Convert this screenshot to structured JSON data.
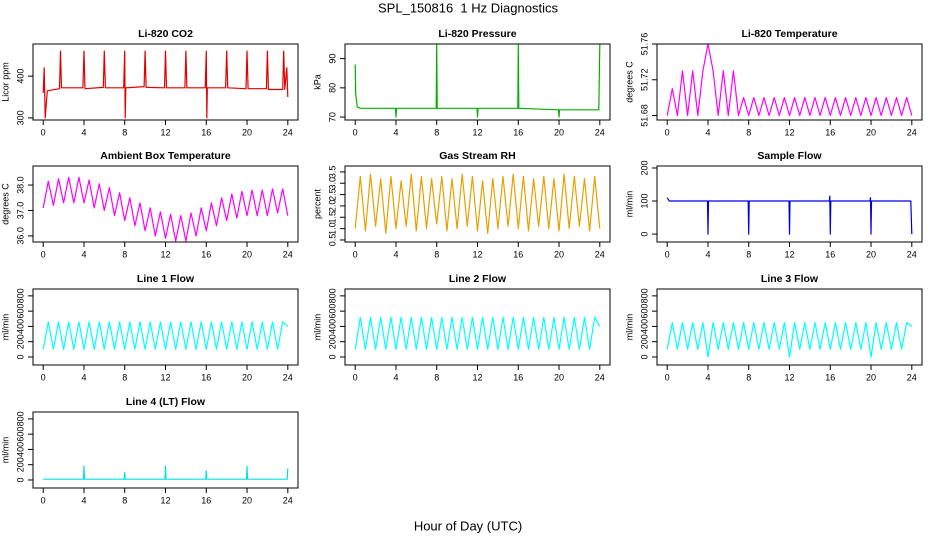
{
  "title": "SPL_150816  1 Hz Diagnostics",
  "xlabel": "Hour of Day (UTC)",
  "chart_data": [
    {
      "type": "line",
      "title": "Li-820 CO2",
      "ylabel": "Licor ppm",
      "xlim": [
        -1,
        25
      ],
      "xticks": [
        0,
        4,
        8,
        12,
        16,
        20,
        24
      ],
      "ylim": [
        295,
        477
      ],
      "yticks": [
        300,
        400
      ],
      "x": [
        0,
        0.1,
        0.2,
        0.4,
        1.6,
        1.7,
        1.8,
        3.9,
        4,
        4.1,
        5.9,
        6,
        6.1,
        7.9,
        8,
        8.05,
        8.1,
        9.9,
        10,
        10.1,
        11.9,
        12,
        12.1,
        13.9,
        14,
        14.1,
        15.9,
        16,
        16.05,
        16.1,
        17.9,
        18,
        18.1,
        19.9,
        20,
        20.1,
        21.9,
        22,
        22.1,
        23.5,
        23.6,
        23.7,
        23.9,
        24
      ],
      "series": [
        {
          "color": "#e00000",
          "values": [
            360,
            420,
            300,
            365,
            370,
            460,
            372,
            372,
            460,
            370,
            373,
            460,
            372,
            372,
            460,
            300,
            372,
            375,
            460,
            373,
            372,
            460,
            372,
            372,
            460,
            372,
            372,
            460,
            300,
            372,
            372,
            460,
            372,
            370,
            460,
            370,
            370,
            460,
            368,
            368,
            460,
            368,
            420,
            350
          ]
        }
      ]
    },
    {
      "type": "line",
      "title": "Li-820 Pressure",
      "ylabel": "kPa",
      "xlim": [
        -1,
        25
      ],
      "xticks": [
        0,
        4,
        8,
        12,
        16,
        20,
        24
      ],
      "ylim": [
        69,
        95
      ],
      "yticks": [
        70,
        80,
        90
      ],
      "x": [
        0,
        0.05,
        0.2,
        0.5,
        3.95,
        4,
        4.05,
        7.95,
        8,
        8.05,
        11.95,
        12,
        12.05,
        15.95,
        16,
        16.05,
        19.95,
        20,
        20.05,
        23.9,
        24
      ],
      "series": [
        {
          "color": "#00b000",
          "values": [
            88,
            78,
            73.5,
            73,
            73,
            70,
            73,
            73,
            95,
            73,
            73,
            70,
            73,
            73,
            95,
            73,
            72.5,
            70,
            72.5,
            72.5,
            95
          ]
        }
      ]
    },
    {
      "type": "line",
      "title": "Li-820 Temperature",
      "ylabel": "degrees C",
      "xlim": [
        -1,
        25
      ],
      "xticks": [
        0,
        4,
        8,
        12,
        16,
        20,
        24
      ],
      "ylim": [
        51.675,
        51.76
      ],
      "yticks": [
        51.68,
        51.72,
        51.76
      ],
      "x": [
        0,
        0.5,
        1,
        1.5,
        2,
        2.5,
        3,
        3.5,
        4,
        4.5,
        5,
        5.5,
        6,
        6.5,
        7,
        7.5,
        8,
        8.5,
        9,
        9.5,
        10,
        10.5,
        11,
        11.5,
        12,
        12.5,
        13,
        13.5,
        14,
        14.5,
        15,
        15.5,
        16,
        16.5,
        17,
        17.5,
        18,
        18.5,
        19,
        19.5,
        20,
        20.5,
        21,
        21.5,
        22,
        22.5,
        23,
        23.5,
        24
      ],
      "series": [
        {
          "color": "#ff00ff",
          "values": [
            51.68,
            51.71,
            51.68,
            51.73,
            51.68,
            51.73,
            51.68,
            51.73,
            51.76,
            51.73,
            51.68,
            51.73,
            51.68,
            51.73,
            51.68,
            51.7,
            51.68,
            51.7,
            51.68,
            51.7,
            51.68,
            51.7,
            51.68,
            51.7,
            51.68,
            51.7,
            51.68,
            51.7,
            51.68,
            51.7,
            51.68,
            51.7,
            51.68,
            51.7,
            51.68,
            51.7,
            51.68,
            51.7,
            51.68,
            51.7,
            51.68,
            51.7,
            51.68,
            51.7,
            51.68,
            51.7,
            51.68,
            51.7,
            51.68
          ]
        }
      ]
    },
    {
      "type": "line",
      "title": "Ambient Box Temperature",
      "ylabel": "degrees C",
      "xlim": [
        -1,
        25
      ],
      "xticks": [
        0,
        4,
        8,
        12,
        16,
        20,
        24
      ],
      "ylim": [
        35.76,
        38.75
      ],
      "yticks": [
        {
          "value": 36,
          "label": "36.0"
        },
        {
          "value": 37,
          "label": "37.0"
        },
        {
          "value": 38,
          "label": "38.0"
        }
      ],
      "x": [
        0,
        0.5,
        1,
        1.5,
        2,
        2.5,
        3,
        3.5,
        4,
        4.5,
        5,
        5.5,
        6,
        6.5,
        7,
        7.5,
        8,
        8.5,
        9,
        9.5,
        10,
        10.5,
        11,
        11.5,
        12,
        12.5,
        13,
        13.5,
        14,
        14.5,
        15,
        15.5,
        16,
        16.5,
        17,
        17.5,
        18,
        18.5,
        19,
        19.5,
        20,
        20.5,
        21,
        21.5,
        22,
        22.5,
        23,
        23.5,
        24
      ],
      "series": [
        {
          "color": "#ff00ff",
          "values": [
            37.1,
            38.15,
            37.2,
            38.25,
            37.3,
            38.3,
            37.3,
            38.3,
            37.3,
            38.2,
            37.1,
            38.05,
            37.0,
            37.9,
            36.8,
            37.7,
            36.6,
            37.5,
            36.4,
            37.3,
            36.2,
            37.1,
            36.0,
            36.95,
            35.9,
            36.85,
            35.8,
            36.8,
            35.8,
            36.9,
            36.0,
            37.1,
            36.2,
            37.3,
            36.4,
            37.5,
            36.6,
            37.65,
            36.7,
            37.75,
            36.8,
            37.8,
            36.8,
            37.8,
            36.8,
            37.85,
            36.9,
            37.85,
            36.8
          ]
        }
      ]
    },
    {
      "type": "line",
      "title": "Gas Stream RH",
      "ylabel": "percent",
      "xlim": [
        -1,
        25
      ],
      "xticks": [
        0,
        4,
        8,
        12,
        16,
        20,
        24
      ],
      "ylim": [
        0.41,
        3.76
      ],
      "yticks": [
        0.5,
        {
          "value": 1,
          "label": "1.0"
        },
        1.5,
        {
          "value": 2,
          "label": "2.0"
        },
        2.5,
        {
          "value": 3,
          "label": "3.0"
        },
        3.5
      ],
      "x": [
        0,
        0.5,
        1,
        1.5,
        2,
        2.5,
        3,
        3.5,
        4,
        4.5,
        5,
        5.5,
        6,
        6.5,
        7,
        7.5,
        8,
        8.5,
        9,
        9.5,
        10,
        10.5,
        11,
        11.5,
        12,
        12.5,
        13,
        13.5,
        14,
        14.5,
        15,
        15.5,
        16,
        16.5,
        17,
        17.5,
        18,
        18.5,
        19,
        19.5,
        20,
        20.5,
        21,
        21.5,
        22,
        22.5,
        23,
        23.5,
        24
      ],
      "series": [
        {
          "color": "#e8a000",
          "values": [
            1.0,
            3.3,
            0.9,
            3.4,
            1.1,
            3.2,
            0.8,
            3.3,
            1.0,
            3.1,
            1.1,
            3.4,
            0.9,
            3.3,
            1.0,
            3.2,
            1.2,
            3.3,
            0.9,
            3.2,
            1.0,
            3.4,
            1.1,
            3.3,
            0.9,
            3.1,
            0.8,
            3.2,
            1.0,
            3.3,
            1.1,
            3.4,
            1.0,
            3.3,
            0.9,
            3.2,
            1.1,
            3.3,
            1.0,
            3.2,
            0.9,
            3.4,
            1.0,
            3.3,
            1.1,
            3.2,
            0.9,
            3.3,
            1.0
          ]
        }
      ]
    },
    {
      "type": "line",
      "title": "Sample Flow",
      "ylabel": "ml/min",
      "xlim": [
        -1,
        25
      ],
      "xticks": [
        0,
        4,
        8,
        12,
        16,
        20,
        24
      ],
      "ylim": [
        -24,
        206
      ],
      "yticks": [
        0,
        100,
        200
      ],
      "x": [
        0,
        0.2,
        3.95,
        4,
        4.05,
        7.95,
        8,
        8.05,
        11.95,
        12,
        12.05,
        15.9,
        15.95,
        16,
        16.05,
        19.9,
        19.95,
        20,
        20.05,
        23.9,
        24
      ],
      "series": [
        {
          "color": "#0000e0",
          "values": [
            110,
            100,
            100,
            0,
            100,
            100,
            0,
            100,
            100,
            0,
            100,
            100,
            115,
            0,
            100,
            100,
            110,
            0,
            100,
            100,
            0
          ]
        }
      ]
    },
    {
      "type": "line",
      "title": "Line 1 Flow",
      "ylabel": "ml/min",
      "xlim": [
        -1,
        25
      ],
      "xticks": [
        0,
        4,
        8,
        12,
        16,
        20,
        24
      ],
      "ylim": [
        -105,
        890
      ],
      "yticks": [
        0,
        200,
        400,
        600,
        800
      ],
      "x": [
        0,
        0.5,
        1,
        1.5,
        2,
        2.5,
        3,
        3.5,
        4,
        4.5,
        5,
        5.5,
        6,
        6.5,
        7,
        7.5,
        8,
        8.5,
        9,
        9.5,
        10,
        10.5,
        11,
        11.5,
        12,
        12.5,
        13,
        13.5,
        14,
        14.5,
        15,
        15.5,
        16,
        16.5,
        17,
        17.5,
        18,
        18.5,
        19,
        19.5,
        20,
        20.5,
        21,
        21.5,
        22,
        22.5,
        23,
        23.5,
        24
      ],
      "series": [
        {
          "color": "#00ffff",
          "values": [
            100,
            460,
            100,
            460,
            100,
            460,
            100,
            460,
            100,
            460,
            100,
            460,
            100,
            460,
            100,
            460,
            100,
            460,
            100,
            460,
            100,
            460,
            100,
            460,
            100,
            460,
            100,
            460,
            100,
            460,
            100,
            460,
            100,
            460,
            100,
            460,
            100,
            460,
            100,
            460,
            100,
            460,
            100,
            460,
            100,
            460,
            100,
            460,
            400
          ]
        }
      ]
    },
    {
      "type": "line",
      "title": "Line 2 Flow",
      "ylabel": "ml/min",
      "xlim": [
        -1,
        25
      ],
      "xticks": [
        0,
        4,
        8,
        12,
        16,
        20,
        24
      ],
      "ylim": [
        -105,
        890
      ],
      "yticks": [
        0,
        200,
        400,
        600,
        800
      ],
      "x": [
        0,
        0.5,
        1,
        1.5,
        2,
        2.5,
        3,
        3.5,
        4,
        4.5,
        5,
        5.5,
        6,
        6.5,
        7,
        7.5,
        8,
        8.5,
        9,
        9.5,
        10,
        10.5,
        11,
        11.5,
        12,
        12.5,
        13,
        13.5,
        14,
        14.5,
        15,
        15.5,
        16,
        16.5,
        17,
        17.5,
        18,
        18.5,
        19,
        19.5,
        20,
        20.5,
        21,
        21.5,
        22,
        22.5,
        23,
        23.5,
        24
      ],
      "series": [
        {
          "color": "#00ffff",
          "values": [
            100,
            520,
            100,
            520,
            100,
            520,
            100,
            520,
            100,
            520,
            100,
            520,
            100,
            520,
            100,
            520,
            100,
            520,
            100,
            520,
            100,
            520,
            100,
            520,
            100,
            520,
            100,
            520,
            100,
            520,
            100,
            520,
            100,
            520,
            100,
            520,
            100,
            520,
            100,
            520,
            100,
            520,
            100,
            520,
            100,
            520,
            100,
            520,
            400
          ]
        }
      ]
    },
    {
      "type": "line",
      "title": "Line 3 Flow",
      "ylabel": "ml/min",
      "xlim": [
        -1,
        25
      ],
      "xticks": [
        0,
        4,
        8,
        12,
        16,
        20,
        24
      ],
      "ylim": [
        -105,
        890
      ],
      "yticks": [
        0,
        200,
        400,
        600,
        800
      ],
      "x": [
        0,
        0.5,
        1,
        1.5,
        2,
        2.5,
        3,
        3.5,
        4,
        4.5,
        5,
        5.5,
        6,
        6.5,
        7,
        7.5,
        8,
        8.5,
        9,
        9.5,
        10,
        10.5,
        11,
        11.5,
        12,
        12.5,
        13,
        13.5,
        14,
        14.5,
        15,
        15.5,
        16,
        16.5,
        17,
        17.5,
        18,
        18.5,
        19,
        19.5,
        20,
        20.5,
        21,
        21.5,
        22,
        22.5,
        23,
        23.5,
        24
      ],
      "series": [
        {
          "color": "#00ffff",
          "values": [
            100,
            450,
            100,
            450,
            100,
            450,
            100,
            450,
            0,
            450,
            100,
            450,
            100,
            450,
            100,
            450,
            100,
            450,
            100,
            450,
            100,
            450,
            100,
            450,
            0,
            450,
            100,
            450,
            100,
            450,
            100,
            450,
            100,
            450,
            100,
            450,
            100,
            450,
            100,
            450,
            0,
            450,
            100,
            450,
            100,
            450,
            100,
            450,
            400
          ]
        }
      ]
    },
    {
      "type": "line",
      "title": "Line 4 (LT) Flow",
      "ylabel": "ml/min",
      "xlim": [
        -1,
        25
      ],
      "xticks": [
        0,
        4,
        8,
        12,
        16,
        20,
        24
      ],
      "ylim": [
        -105,
        890
      ],
      "yticks": [
        0,
        200,
        400,
        600,
        800
      ],
      "x": [
        0,
        3.95,
        4,
        4.05,
        7.95,
        8,
        8.05,
        11.95,
        12,
        12.05,
        15.95,
        16,
        16.05,
        19.95,
        20,
        20.05,
        23.95,
        24
      ],
      "series": [
        {
          "color": "#00e0e0",
          "values": [
            10,
            10,
            180,
            10,
            10,
            100,
            10,
            10,
            180,
            10,
            10,
            120,
            10,
            10,
            180,
            10,
            10,
            150
          ]
        }
      ]
    }
  ]
}
